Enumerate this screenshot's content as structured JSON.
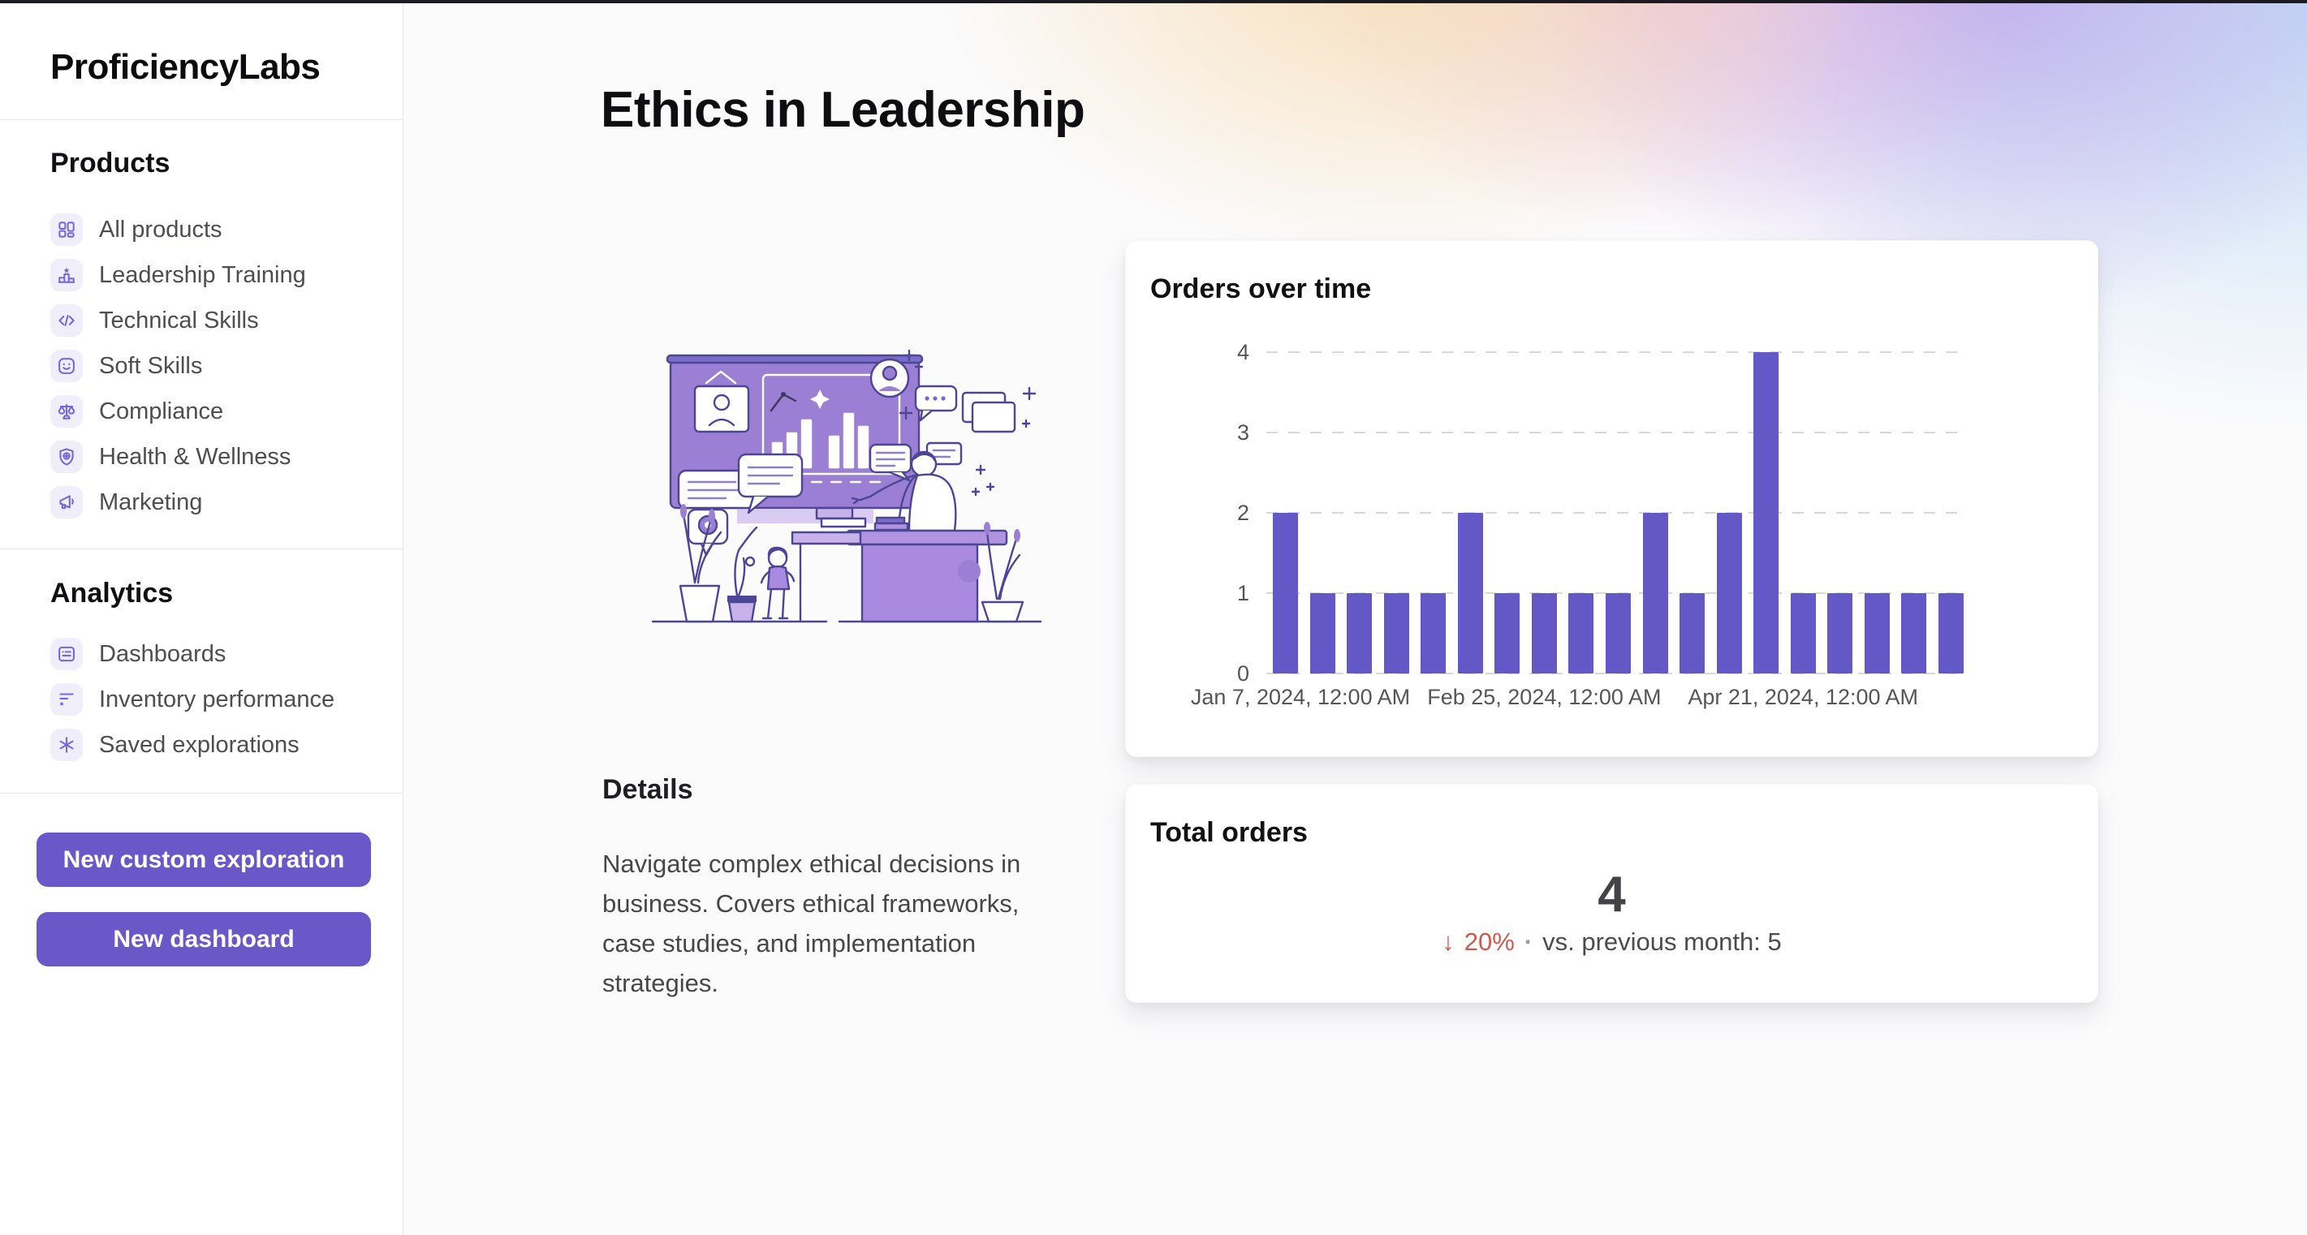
{
  "window": {
    "top_strip_color": "#1c1b22"
  },
  "sidebar": {
    "brand": "ProficiencyLabs",
    "sections": [
      {
        "title": "Products",
        "items": [
          {
            "label": "All products",
            "icon": "grid-icon"
          },
          {
            "label": "Leadership Training",
            "icon": "podium-icon"
          },
          {
            "label": "Technical Skills",
            "icon": "code-icon"
          },
          {
            "label": "Soft Skills",
            "icon": "smiley-icon"
          },
          {
            "label": "Compliance",
            "icon": "scale-icon"
          },
          {
            "label": "Health & Wellness",
            "icon": "shield-plus-icon"
          },
          {
            "label": "Marketing",
            "icon": "megaphone-icon"
          }
        ]
      },
      {
        "title": "Analytics",
        "items": [
          {
            "label": "Dashboards",
            "icon": "report-icon"
          },
          {
            "label": "Inventory performance",
            "icon": "bars-icon"
          },
          {
            "label": "Saved explorations",
            "icon": "asterisk-icon"
          }
        ]
      }
    ],
    "buttons": [
      {
        "label": "New custom exploration"
      },
      {
        "label": "New dashboard"
      }
    ]
  },
  "main": {
    "page_title": "Ethics in Leadership",
    "details": {
      "heading": "Details",
      "body": "Navigate complex ethical decisions in business. Covers ethical frameworks, case studies, and implementation strategies."
    }
  },
  "chart_card": {
    "title": "Orders over time"
  },
  "chart_data": {
    "type": "bar",
    "title": "Orders over time",
    "values": [
      2,
      1,
      1,
      1,
      1,
      2,
      1,
      1,
      1,
      1,
      2,
      1,
      2,
      4,
      1,
      1,
      1,
      1,
      1
    ],
    "x_ticks": [
      {
        "bar_index": 0,
        "label": "Jan 7, 2024, 12:00 AM"
      },
      {
        "bar_index": 7,
        "label": "Feb 25, 2024, 12:00 AM"
      },
      {
        "bar_index": 14,
        "label": "Apr 21, 2024, 12:00 AM"
      }
    ],
    "yticks": [
      0,
      1,
      2,
      3,
      4
    ],
    "ylim": [
      0,
      4
    ],
    "xlabel": "",
    "ylabel": "",
    "grid": "dashed-horizontal",
    "legend": "none",
    "bar_color": "#6458c6"
  },
  "total_card": {
    "title": "Total orders",
    "value": "4",
    "delta_arrow": "↓",
    "delta": "20%",
    "separator": "·",
    "comparison": "vs. previous month: 5"
  },
  "colors": {
    "accent_purple": "#6458c6",
    "button_purple": "#6a57c8",
    "icon_purple": "#7668d8",
    "icon_chip_bg": "#f1eefb",
    "delta_red": "#cd5a52",
    "text_dark": "#111111",
    "text_gray": "#4d4d52",
    "grid_gray": "#d8d8dc"
  }
}
